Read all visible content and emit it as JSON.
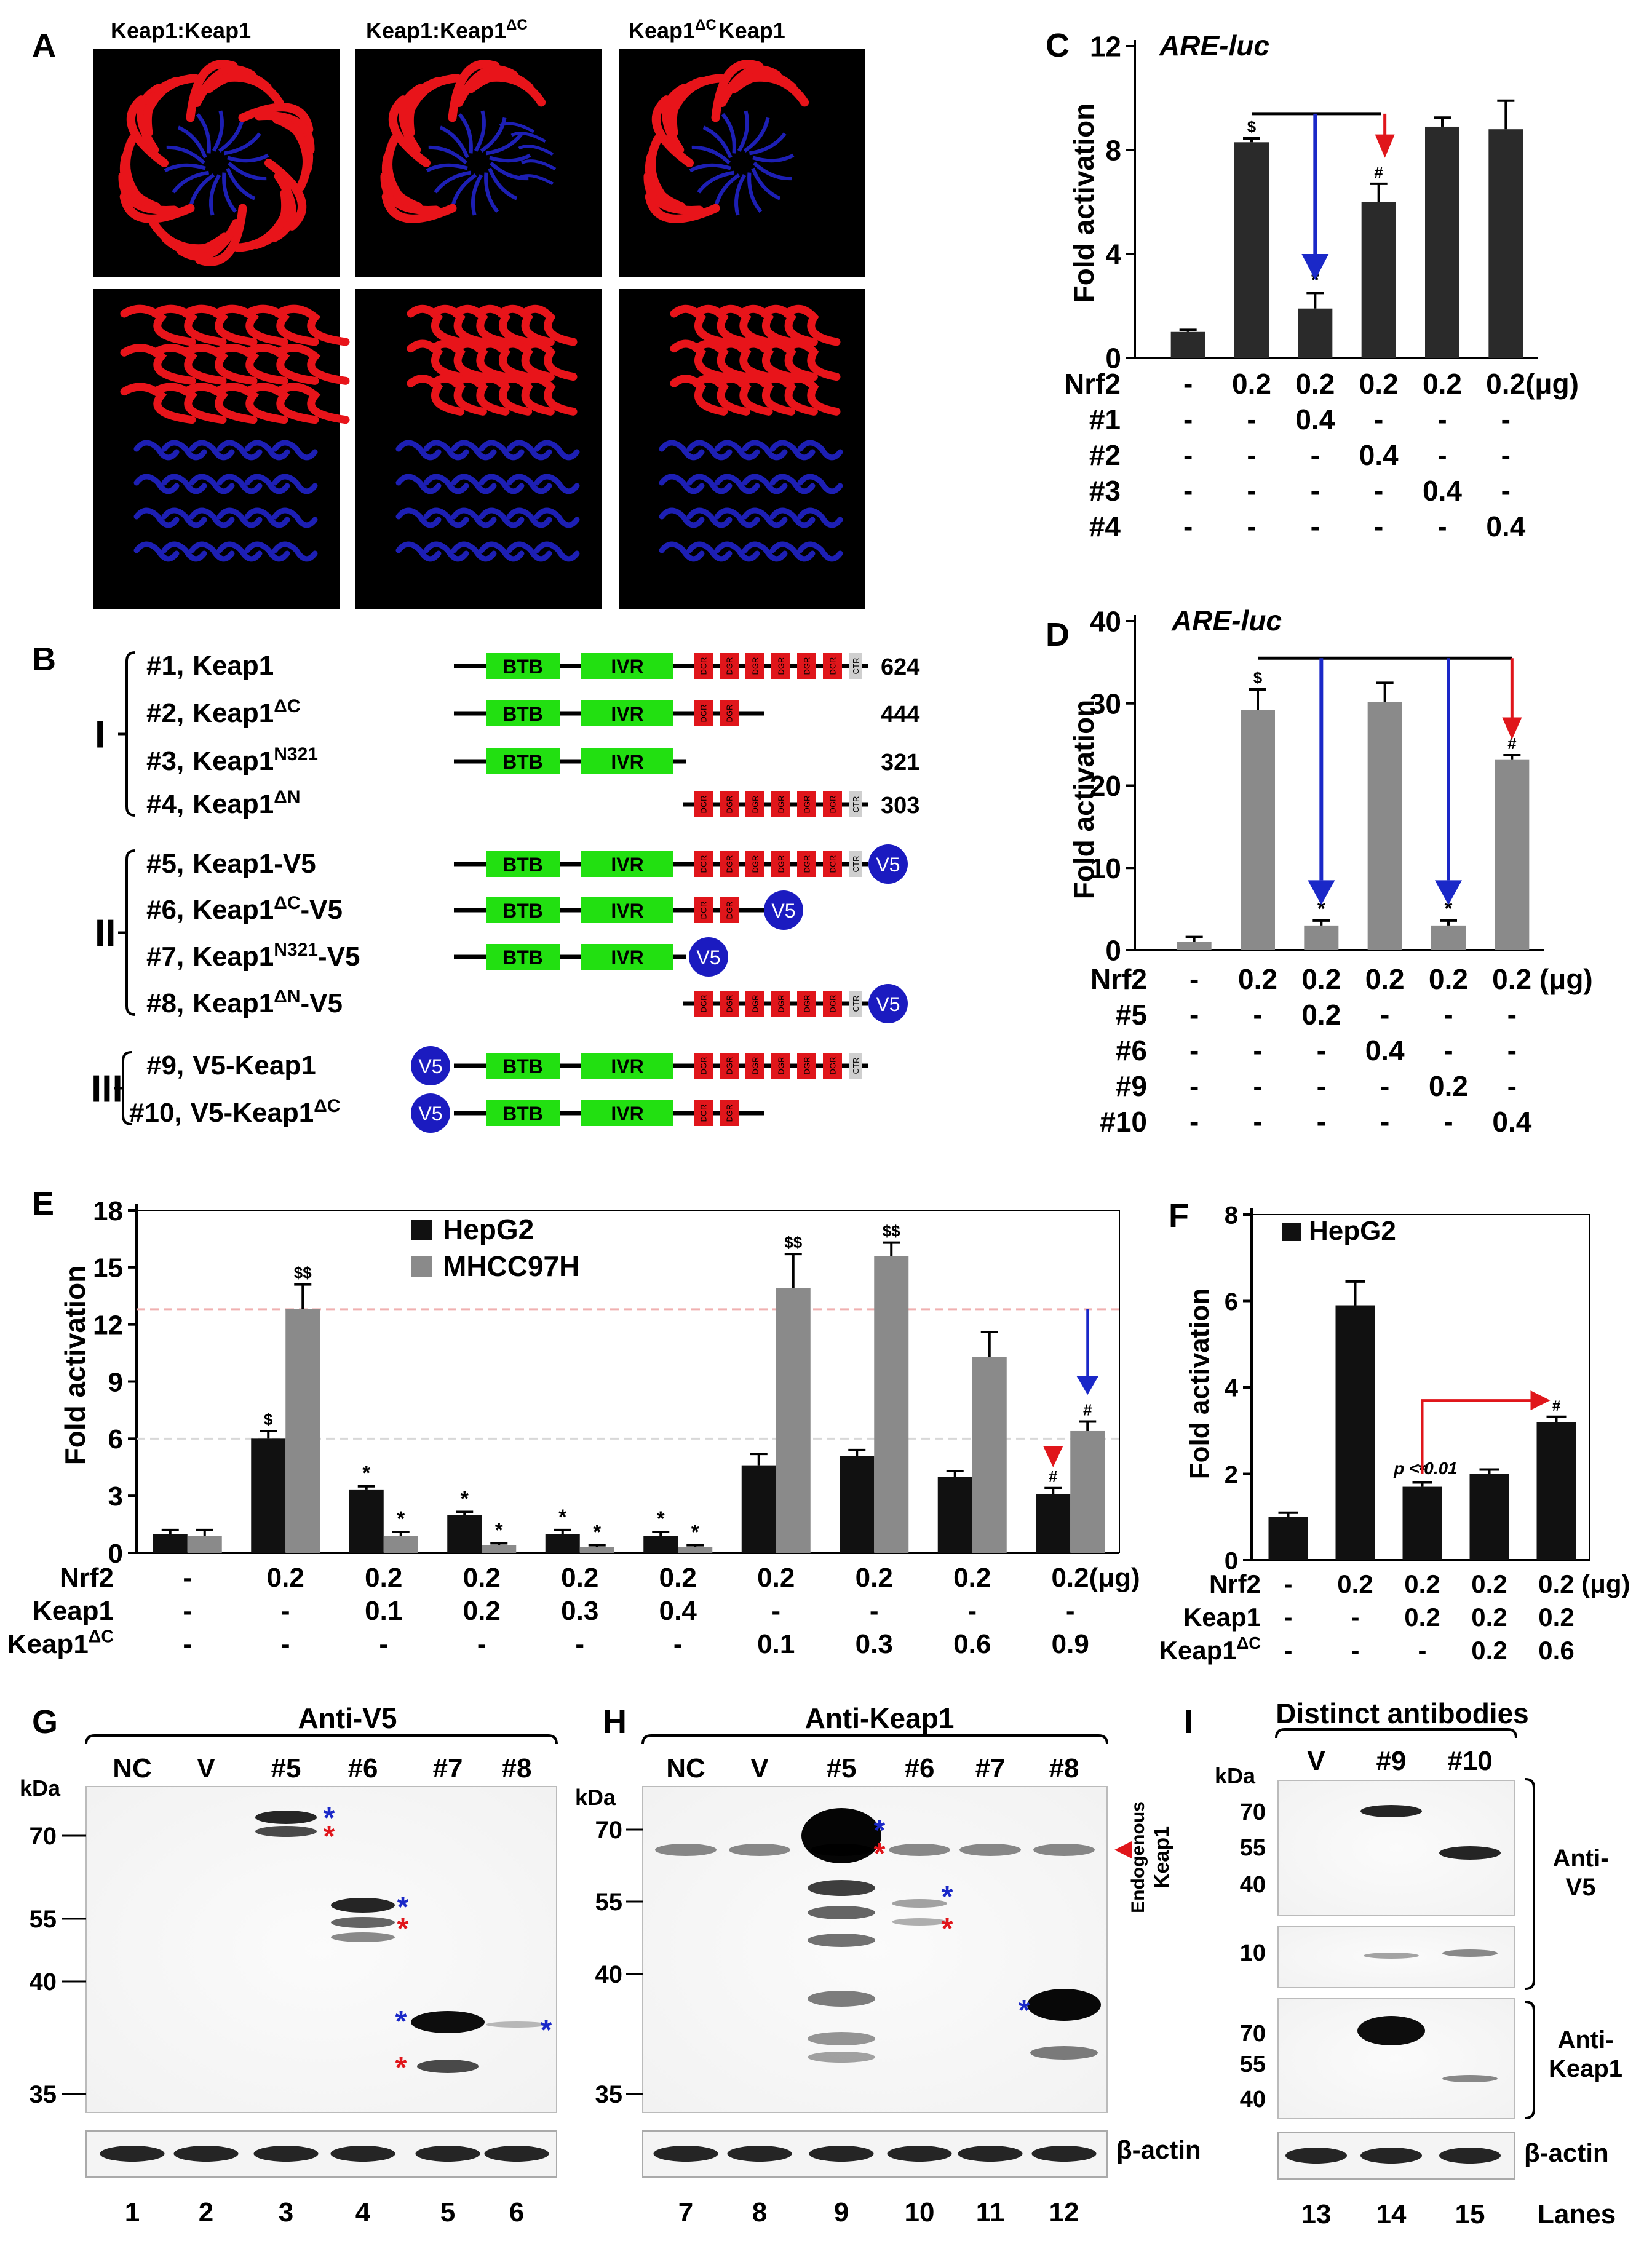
{
  "panel_labels": {
    "A": "A",
    "B": "B",
    "C": "C",
    "D": "D",
    "E": "E",
    "F": "F",
    "G": "G",
    "H": "H",
    "I": "I"
  },
  "panelA": {
    "titles": [
      "Keap1:Keap1",
      "Keap1:Keap1",
      "Keap1",
      "Keap1",
      "Keap1"
    ],
    "sup": "ΔC",
    "colors": {
      "chain1": "#e8141a",
      "chain2": "#1d1fb4",
      "background": "#000000"
    }
  },
  "panelB": {
    "groups": [
      "I",
      "II",
      "III"
    ],
    "domain_labels": {
      "btb": "BTB",
      "ivr": "IVR",
      "dgr": "DGR",
      "ctr": "CTR",
      "v5": "V5"
    },
    "constructs": [
      {
        "id": "#1,",
        "name": "Keap1",
        "sup": "",
        "length": "624"
      },
      {
        "id": "#2,",
        "name": "Keap1",
        "sup": "ΔC",
        "length": "444"
      },
      {
        "id": "#3,",
        "name": "Keap1",
        "sup": "N321",
        "length": "321"
      },
      {
        "id": "#4,",
        "name": "Keap1",
        "sup": "ΔN",
        "length": "303"
      },
      {
        "id": "#5,",
        "name": "Keap1-V5",
        "sup": "",
        "length": ""
      },
      {
        "id": "#6,",
        "name": "Keap1",
        "sup": "ΔC",
        "suffix": "-V5",
        "length": ""
      },
      {
        "id": "#7,",
        "name": "Keap1",
        "sup": "N321",
        "suffix": "-V5",
        "length": ""
      },
      {
        "id": "#8,",
        "name": "Keap1",
        "sup": "ΔN",
        "suffix": "-V5",
        "length": ""
      },
      {
        "id": "#9,",
        "name": "V5-Keap1",
        "sup": "",
        "length": ""
      },
      {
        "id": "#10,",
        "name": "V5-Keap1",
        "sup": "ΔC",
        "length": ""
      }
    ],
    "colors": {
      "btb": "#22e011",
      "dgr": "#e0161b",
      "v5": "#1b1bc0",
      "ctr": "#cfcfcf"
    }
  },
  "chart_data": [
    {
      "panel": "C",
      "type": "bar",
      "title": "ARE-luc",
      "ylabel": "Fold activation",
      "ylim": [
        0,
        12
      ],
      "yticks": [
        "0",
        "4",
        "8",
        "12"
      ],
      "values": [
        1.0,
        8.3,
        1.9,
        6.0,
        8.9,
        8.8
      ],
      "errors": [
        0.08,
        0.15,
        0.6,
        0.7,
        0.35,
        1.1
      ],
      "marks": [
        "",
        "$",
        "*",
        "#",
        "",
        ""
      ],
      "rows": [
        {
          "label": "Nrf2",
          "cells": [
            "-",
            "0.2",
            "0.2",
            "0.2",
            "0.2",
            "0.2(μg)"
          ]
        },
        {
          "label": "#1",
          "cells": [
            "-",
            "-",
            "0.4",
            "-",
            "-",
            "-"
          ]
        },
        {
          "label": "#2",
          "cells": [
            "-",
            "-",
            "-",
            "0.4",
            "-",
            "-"
          ]
        },
        {
          "label": "#3",
          "cells": [
            "-",
            "-",
            "-",
            "-",
            "0.4",
            "-"
          ]
        },
        {
          "label": "#4",
          "cells": [
            "-",
            "-",
            "-",
            "-",
            "-",
            "0.4"
          ]
        }
      ],
      "colors": {
        "bar": "#2a2a2a"
      }
    },
    {
      "panel": "D",
      "type": "bar",
      "title": "ARE-luc",
      "ylabel": "Fold activation",
      "ylim": [
        0,
        40
      ],
      "yticks": [
        "0",
        "10",
        "20",
        "30",
        "40"
      ],
      "values": [
        1.0,
        29.2,
        3.0,
        30.2,
        3.0,
        23.2
      ],
      "errors": [
        0.6,
        2.5,
        0.6,
        2.3,
        0.6,
        0.5
      ],
      "marks": [
        "",
        "$",
        "**",
        "",
        "**",
        "#"
      ],
      "rows": [
        {
          "label": "Nrf2",
          "cells": [
            "-",
            "0.2",
            "0.2",
            "0.2",
            "0.2",
            "0.2 (μg)"
          ]
        },
        {
          "label": "#5",
          "cells": [
            "-",
            "-",
            "0.2",
            "-",
            "-",
            "-"
          ]
        },
        {
          "label": "#6",
          "cells": [
            "-",
            "-",
            "-",
            "0.4",
            "-",
            "-"
          ]
        },
        {
          "label": "#9",
          "cells": [
            "-",
            "-",
            "-",
            "-",
            "0.2",
            "-"
          ]
        },
        {
          "label": "#10",
          "cells": [
            "-",
            "-",
            "-",
            "-",
            "-",
            "0.4"
          ]
        }
      ],
      "colors": {
        "bar": "#8a8a8a"
      }
    },
    {
      "panel": "E",
      "type": "bar",
      "ylabel": "Fold activation",
      "ylim": [
        0,
        18
      ],
      "yticks": [
        "0",
        "3",
        "6",
        "9",
        "12",
        "15",
        "18"
      ],
      "series": [
        {
          "name": "HepG2",
          "values": [
            1.0,
            6.0,
            3.3,
            2.0,
            1.0,
            0.9,
            4.6,
            5.1,
            4.0,
            3.1
          ],
          "errors": [
            0.2,
            0.4,
            0.2,
            0.15,
            0.2,
            0.2,
            0.6,
            0.3,
            0.3,
            0.3
          ],
          "marks": [
            "",
            "$",
            "*",
            "*",
            "*",
            "*",
            "",
            "",
            "",
            "#"
          ]
        },
        {
          "name": "MHCC97H",
          "values": [
            0.9,
            12.8,
            0.9,
            0.4,
            0.3,
            0.3,
            13.9,
            15.6,
            10.3,
            6.4
          ],
          "errors": [
            0.3,
            1.3,
            0.2,
            0.1,
            0.1,
            0.1,
            1.8,
            0.7,
            1.3,
            0.5
          ],
          "marks": [
            "",
            "$$",
            "*",
            "*",
            "*",
            "*",
            "$$",
            "$$",
            "",
            "#"
          ]
        }
      ],
      "rows": [
        {
          "label": "Nrf2",
          "cells": [
            "-",
            "0.2",
            "0.2",
            "0.2",
            "0.2",
            "0.2",
            "0.2",
            "0.2",
            "0.2",
            "0.2(μg)"
          ]
        },
        {
          "label": "Keap1",
          "cells": [
            "-",
            "-",
            "0.1",
            "0.2",
            "0.3",
            "0.4",
            "-",
            "-",
            "-",
            "-"
          ]
        },
        {
          "label": "Keap1",
          "sup": "ΔC",
          "cells": [
            "-",
            "-",
            "-",
            "-",
            "-",
            "-",
            "0.1",
            "0.3",
            "0.6",
            "0.9"
          ]
        }
      ],
      "reference_lines": [
        12.8,
        6.0
      ],
      "colors": {
        "HepG2": "#111111",
        "MHCC97H": "#8a8a8a",
        "ref": "#e89a9a"
      }
    },
    {
      "panel": "F",
      "type": "bar",
      "ylabel": "Fold activation",
      "ylim": [
        0,
        8
      ],
      "yticks": [
        "0",
        "2",
        "4",
        "6",
        "8"
      ],
      "series": [
        {
          "name": "HepG2",
          "values": [
            1.0,
            5.9,
            1.7,
            2.0,
            3.2
          ],
          "errors": [
            0.1,
            0.55,
            0.1,
            0.1,
            0.12
          ],
          "marks": [
            "",
            "",
            "*",
            "",
            "#"
          ]
        }
      ],
      "annotation": "p < 0.01",
      "rows": [
        {
          "label": "Nrf2",
          "cells": [
            "-",
            "0.2",
            "0.2",
            "0.2",
            "0.2 (μg)"
          ]
        },
        {
          "label": "Keap1",
          "cells": [
            "-",
            "-",
            "0.2",
            "0.2",
            "0.2"
          ]
        },
        {
          "label": "Keap1",
          "sup": "ΔC",
          "cells": [
            "-",
            "-",
            "-",
            "0.2",
            "0.6"
          ]
        }
      ],
      "colors": {
        "bar": "#111111"
      }
    }
  ],
  "panelG": {
    "title": "Anti-V5",
    "kda": "kDa",
    "lanes": [
      "NC",
      "V",
      "#5",
      "#6",
      "#7",
      "#8"
    ],
    "markers": [
      "70",
      "55",
      "40",
      "35"
    ],
    "lane_numbers": [
      "1",
      "2",
      "3",
      "4",
      "5",
      "6"
    ]
  },
  "panelH": {
    "title": "Anti-Keap1",
    "kda": "kDa",
    "lanes": [
      "NC",
      "V",
      "#5",
      "#6",
      "#7",
      "#8"
    ],
    "markers": [
      "70",
      "55",
      "40",
      "35"
    ],
    "lane_numbers": [
      "7",
      "8",
      "9",
      "10",
      "11",
      "12"
    ],
    "side_label": [
      "Endogenous",
      "Keap1"
    ]
  },
  "panelI": {
    "title": "Distinct antibodies",
    "kda": "kDa",
    "lanes": [
      "V",
      "#9",
      "#10"
    ],
    "markers_v5": [
      "70",
      "55",
      "40"
    ],
    "marker_small": "10",
    "markers_keap1": [
      "70",
      "55",
      "40"
    ],
    "antibodies": [
      [
        "Anti-",
        "V5"
      ],
      [
        "Anti-",
        "Keap1"
      ]
    ],
    "lane_numbers": [
      "13",
      "14",
      "15"
    ],
    "lanes_label": "Lanes"
  },
  "beta_actin": "β-actin",
  "stars": {
    "blue": "#1a28c8",
    "red": "#e0161b"
  }
}
